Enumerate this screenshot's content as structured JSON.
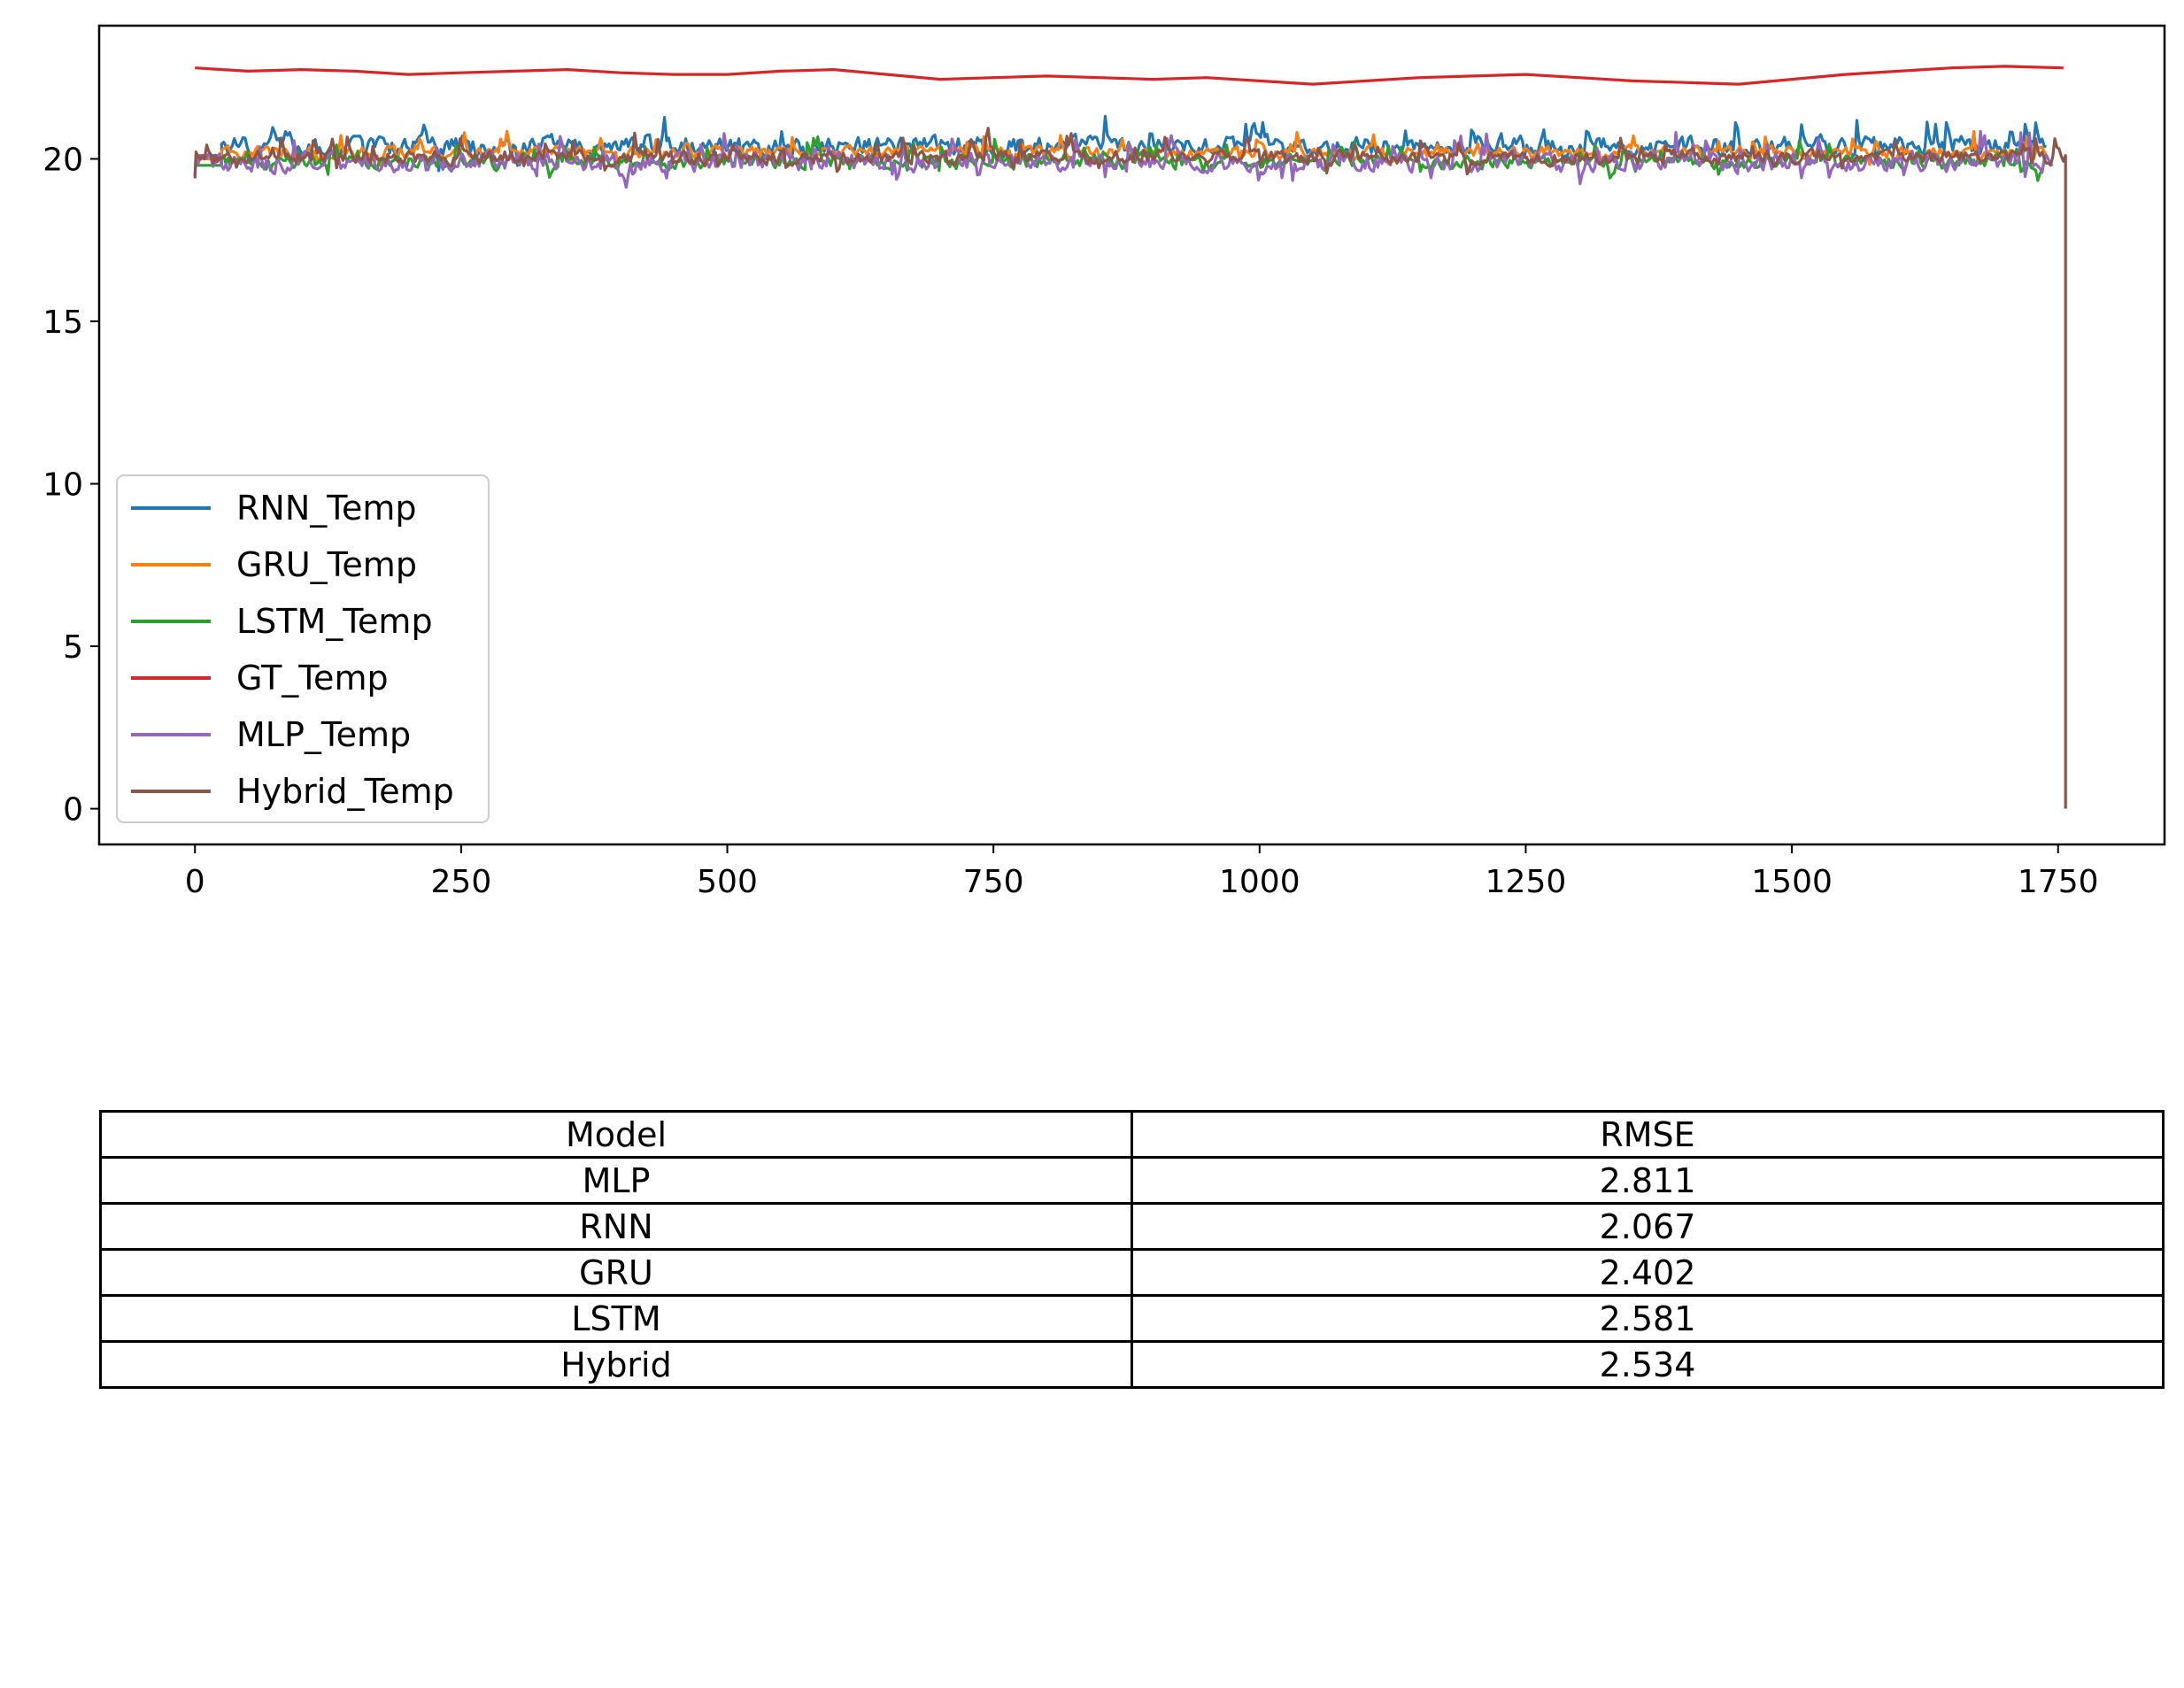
{
  "chart_data": [
    {
      "type": "line",
      "title": "",
      "xlabel": "",
      "ylabel": "",
      "xlim": [
        -90,
        1850
      ],
      "ylim": [
        -1.1,
        24.1
      ],
      "xticks": [
        "0",
        "250",
        "500",
        "750",
        "1000",
        "1250",
        "1500",
        "1750"
      ],
      "yticks": [
        "0",
        "5",
        "10",
        "15",
        "20"
      ],
      "grid": false,
      "legend": "lower-left",
      "series": [
        {
          "name": "RNN_Temp",
          "color": "#1f77b4",
          "mean": 20.4,
          "noise": 0.55,
          "start": 25,
          "end": 1740,
          "first": 20.1
        },
        {
          "name": "GRU_Temp",
          "color": "#ff7f0e",
          "mean": 20.2,
          "noise": 0.35,
          "start": 25,
          "end": 1740,
          "first": 20.0
        },
        {
          "name": "LSTM_Temp",
          "color": "#2ca02c",
          "mean": 19.9,
          "noise": 0.4,
          "start": 25,
          "end": 1740,
          "first": 19.8
        },
        {
          "name": "GT_Temp",
          "color": "#d62728",
          "x": [
            0,
            50,
            100,
            150,
            200,
            250,
            300,
            350,
            400,
            450,
            500,
            550,
            600,
            650,
            700,
            750,
            800,
            850,
            900,
            950,
            1000,
            1050,
            1100,
            1150,
            1200,
            1250,
            1300,
            1350,
            1400,
            1450,
            1500,
            1550,
            1600,
            1650,
            1700,
            1755
          ],
          "y": [
            22.8,
            22.7,
            22.75,
            22.7,
            22.6,
            22.65,
            22.7,
            22.75,
            22.65,
            22.6,
            22.6,
            22.7,
            22.75,
            22.6,
            22.45,
            22.5,
            22.55,
            22.5,
            22.45,
            22.5,
            22.4,
            22.3,
            22.4,
            22.5,
            22.55,
            22.6,
            22.5,
            22.4,
            22.35,
            22.3,
            22.45,
            22.6,
            22.7,
            22.8,
            22.85,
            22.8
          ]
        },
        {
          "name": "MLP_Temp",
          "color": "#9467bd",
          "mean": 19.9,
          "noise": 0.55,
          "start": 0,
          "end": 1745,
          "first": 19.5
        },
        {
          "name": "Hybrid_Temp",
          "color": "#8c564b",
          "mean": 20.05,
          "noise": 0.4,
          "start": 0,
          "end": 1757,
          "first": 19.4,
          "final_drop": [
            1757,
            0
          ]
        }
      ]
    },
    {
      "type": "table",
      "columns": [
        "Model",
        "RMSE"
      ],
      "rows": [
        [
          "MLP",
          "2.811"
        ],
        [
          "RNN",
          "2.067"
        ],
        [
          "GRU",
          "2.402"
        ],
        [
          "LSTM",
          "2.581"
        ],
        [
          "Hybrid",
          "2.534"
        ]
      ]
    }
  ]
}
